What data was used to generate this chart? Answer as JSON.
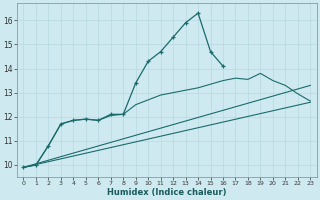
{
  "xlabel": "Humidex (Indice chaleur)",
  "background_color": "#ceeaf0",
  "grid_color": "#b8d8e0",
  "line_color": "#1a6b6b",
  "xlim": [
    -0.5,
    23.5
  ],
  "ylim": [
    9.5,
    16.7
  ],
  "yticks": [
    10,
    11,
    12,
    13,
    14,
    15,
    16
  ],
  "xticks": [
    0,
    1,
    2,
    3,
    4,
    5,
    6,
    7,
    8,
    9,
    10,
    11,
    12,
    13,
    14,
    15,
    16,
    17,
    18,
    19,
    20,
    21,
    22,
    23
  ],
  "series": [
    {
      "x": [
        0,
        1,
        2,
        3,
        4,
        5,
        6,
        7,
        8,
        9,
        10,
        11,
        12,
        13,
        14,
        15,
        16,
        17,
        18,
        19,
        20,
        21,
        22,
        23
      ],
      "y": [
        9.9,
        10.0,
        10.8,
        11.7,
        11.85,
        11.9,
        11.85,
        12.1,
        12.1,
        13.4,
        14.3,
        14.7,
        15.3,
        15.9,
        16.3,
        14.7,
        14.1,
        null,
        null,
        null,
        null,
        null,
        null,
        null
      ],
      "marker": true
    },
    {
      "x": [
        0,
        23
      ],
      "y": [
        9.9,
        12.6
      ],
      "marker": false
    },
    {
      "x": [
        0,
        23
      ],
      "y": [
        9.9,
        13.3
      ],
      "marker": false
    },
    {
      "x": [
        0,
        1,
        2,
        3,
        4,
        5,
        6,
        7,
        8,
        9,
        10,
        11,
        12,
        13,
        14,
        15,
        16,
        17,
        18,
        19,
        20,
        21,
        22,
        23
      ],
      "y": [
        9.9,
        10.0,
        10.8,
        11.7,
        11.85,
        11.9,
        11.85,
        12.05,
        12.1,
        12.5,
        12.7,
        12.9,
        13.0,
        13.1,
        13.2,
        13.35,
        13.5,
        13.6,
        13.55,
        13.8,
        13.5,
        13.3,
        12.95,
        12.65
      ],
      "marker": false
    }
  ]
}
